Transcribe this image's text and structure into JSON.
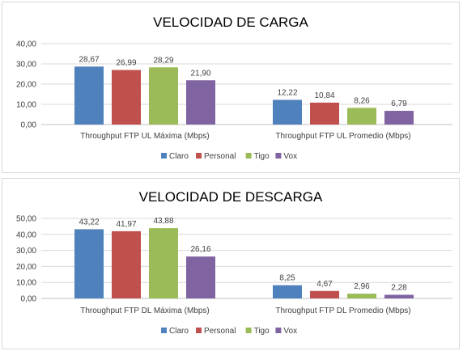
{
  "chart_data": [
    {
      "type": "bar",
      "title": "VELOCIDAD DE CARGA",
      "categories": [
        "Throughput FTP UL Máxima (Mbps)",
        "Throughput FTP UL Promedio (Mbps)"
      ],
      "series": [
        {
          "name": "Claro",
          "color": "#4F81BD",
          "values": [
            28.67,
            12.22
          ],
          "labels": [
            "28,67",
            "12,22"
          ]
        },
        {
          "name": "Personal",
          "color": "#C0504D",
          "values": [
            26.99,
            10.84
          ],
          "labels": [
            "26,99",
            "10,84"
          ]
        },
        {
          "name": "Tigo",
          "color": "#9BBB59",
          "values": [
            28.29,
            8.26
          ],
          "labels": [
            "28,29",
            "8,26"
          ]
        },
        {
          "name": "Vox",
          "color": "#8064A2",
          "values": [
            21.9,
            6.79
          ],
          "labels": [
            "21,90",
            "6,79"
          ]
        }
      ],
      "ylim": [
        0,
        40
      ],
      "yticks": [
        "0,00",
        "10,00",
        "20,00",
        "30,00",
        "40,00"
      ],
      "grid": true,
      "legend": "bottom"
    },
    {
      "type": "bar",
      "title": "VELOCIDAD DE DESCARGA",
      "categories": [
        "Throughput FTP DL Máxima (Mbps)",
        "Throughput FTP DL Promedio (Mbps)"
      ],
      "series": [
        {
          "name": "Claro",
          "color": "#4F81BD",
          "values": [
            43.22,
            8.25
          ],
          "labels": [
            "43,22",
            "8,25"
          ]
        },
        {
          "name": "Personal",
          "color": "#C0504D",
          "values": [
            41.97,
            4.67
          ],
          "labels": [
            "41,97",
            "4,67"
          ]
        },
        {
          "name": "Tigo",
          "color": "#9BBB59",
          "values": [
            43.88,
            2.96
          ],
          "labels": [
            "43,88",
            "2,96"
          ]
        },
        {
          "name": "Vox",
          "color": "#8064A2",
          "values": [
            26.16,
            2.28
          ],
          "labels": [
            "26,16",
            "2,28"
          ]
        }
      ],
      "ylim": [
        0,
        50
      ],
      "yticks": [
        "0,00",
        "10,00",
        "20,00",
        "30,00",
        "40,00",
        "50,00"
      ],
      "grid": true,
      "legend": "bottom"
    }
  ]
}
